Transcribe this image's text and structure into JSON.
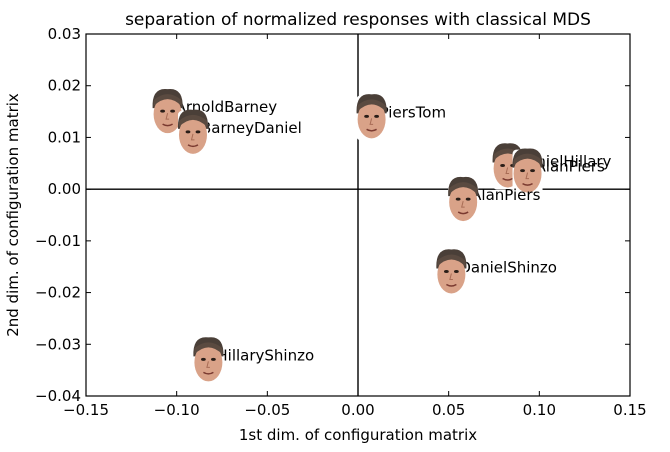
{
  "chart_data": {
    "type": "scatter",
    "title": "separation of normalized responses with classical MDS",
    "xlabel": "1st dim. of configuration matrix",
    "ylabel": "2nd dim. of configuration matrix",
    "xlim": [
      -0.15,
      0.15
    ],
    "ylim": [
      -0.04,
      0.03
    ],
    "xticks": [
      -0.15,
      -0.1,
      -0.05,
      0.0,
      0.05,
      0.1,
      0.15
    ],
    "xtick_labels": [
      "−0.15",
      "−0.10",
      "−0.05",
      "0.00",
      "0.05",
      "0.10",
      "0.15"
    ],
    "yticks": [
      -0.04,
      -0.03,
      -0.02,
      -0.01,
      0.0,
      0.01,
      0.02,
      0.03
    ],
    "ytick_labels": [
      "−0.04",
      "−0.03",
      "−0.02",
      "−0.01",
      "0.00",
      "0.01",
      "0.02",
      "0.03"
    ],
    "zero_lines": true,
    "grid": false,
    "marker": "face-image",
    "points": [
      {
        "label": "ArnoldBarney",
        "x": -0.105,
        "y": 0.0145
      },
      {
        "label": "BarneyDaniel",
        "x": -0.091,
        "y": 0.0105
      },
      {
        "label": "PiersTom",
        "x": 0.0075,
        "y": 0.0135
      },
      {
        "label": "DanielHillary",
        "x": 0.0825,
        "y": 0.004
      },
      {
        "label": "AlanPiers",
        "x": 0.0935,
        "y": 0.003
      },
      {
        "label": "AlanPiers",
        "x": 0.058,
        "y": -0.0025
      },
      {
        "label": "DanielShinzo",
        "x": 0.0515,
        "y": -0.0165
      },
      {
        "label": "HillaryShinzo",
        "x": -0.0825,
        "y": -0.0335
      }
    ]
  }
}
